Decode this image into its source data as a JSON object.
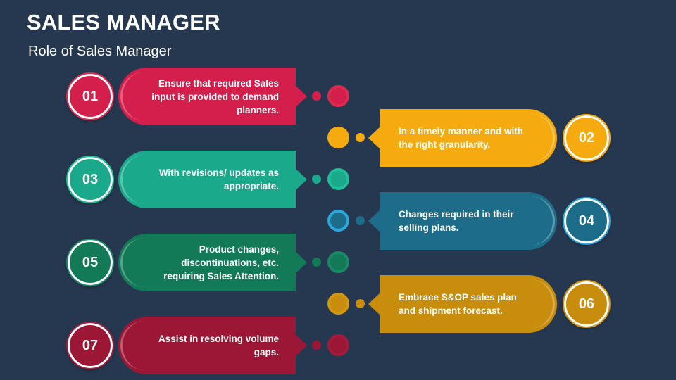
{
  "title": "SALES MANAGER",
  "subtitle": "Role of Sales Manager",
  "steps": [
    {
      "number": "01",
      "text": "Ensure that required Sales input is provided to demand planners.",
      "side": "left",
      "color": "#d41e4b",
      "dark": "#b01840"
    },
    {
      "number": "02",
      "text": "In a timely manner and with the right granularity.",
      "side": "right",
      "color": "#f5ab0f",
      "dark": "#d99400"
    },
    {
      "number": "03",
      "text": "With revisions/ updates as appropriate.",
      "side": "left",
      "color": "#1aa98a",
      "dark": "#158a70"
    },
    {
      "number": "04",
      "text": "Changes required in their selling plans.",
      "side": "right",
      "color": "#1d6d8a",
      "dark": "#195d75"
    },
    {
      "number": "05",
      "text": "Product changes, discontinuations, etc. requiring Sales Attention.",
      "side": "left",
      "color": "#137a58",
      "dark": "#0f664a"
    },
    {
      "number": "06",
      "text": "Embrace S&OP sales plan and shipment forecast.",
      "side": "right",
      "color": "#c88d0c",
      "dark": "#ad7a08"
    },
    {
      "number": "07",
      "text": "Assist in resolving volume gaps.",
      "side": "left",
      "color": "#9c1735",
      "dark": "#84122c"
    }
  ],
  "accents": {
    "badge_ring_02": "#f5ab0f",
    "badge_ring_04": "#2aa7dc",
    "arrow_04": "#2aa7dc",
    "ring_03": "#23d2a6",
    "ring_06": "#d4970e"
  }
}
